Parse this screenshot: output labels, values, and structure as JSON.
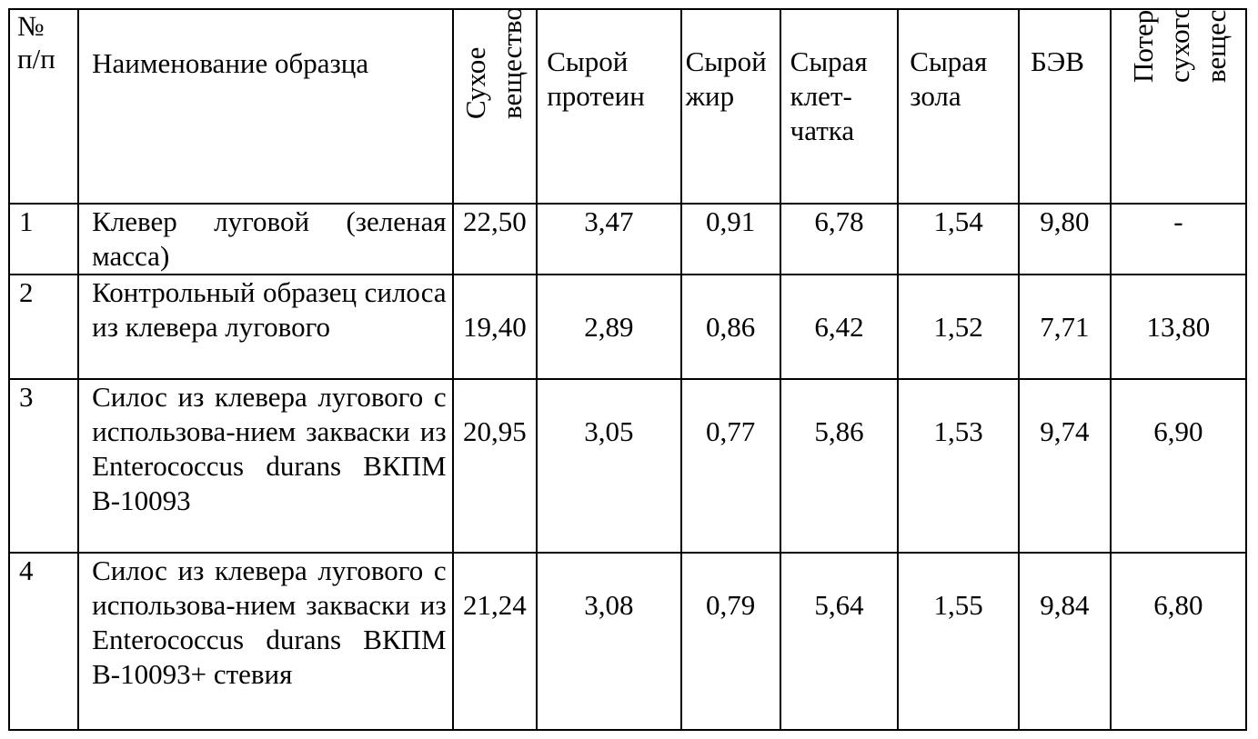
{
  "table": {
    "headers": {
      "num": "№ п/п",
      "num_line1": "№",
      "num_line2": "п/п",
      "name": "Наименование образца",
      "dry_matter_line1": "Сухое",
      "dry_matter_line2": "вещество",
      "crude_protein_line1": "Сырой",
      "crude_protein_line2": "протеин",
      "crude_fat_line1": "Сырой",
      "crude_fat_line2": "жир",
      "crude_fiber_line1": "Сырая",
      "crude_fiber_line2": "клет-",
      "crude_fiber_line3": "чатка",
      "crude_ash_line1": "Сырая",
      "crude_ash_line2": "зола",
      "bev": "БЭВ",
      "loss_line1": "Потери",
      "loss_line2": "сухого",
      "loss_line3": "вещества, %"
    },
    "rows": [
      {
        "num": "1",
        "name": "Клевер луговой (зеленая масса)",
        "dry_matter": "22,50",
        "crude_protein": "3,47",
        "crude_fat": "0,91",
        "crude_fiber": "6,78",
        "crude_ash": "1,54",
        "bev": "9,80",
        "loss": "-"
      },
      {
        "num": "2",
        "name": "Контрольный образец силоса из клевера лугового",
        "dry_matter": "19,40",
        "crude_protein": "2,89",
        "crude_fat": "0,86",
        "crude_fiber": "6,42",
        "crude_ash": "1,52",
        "bev": "7,71",
        "loss": "13,80"
      },
      {
        "num": "3",
        "name": "Силос из клевера лугового с использова-нием закваски из Enterococcus durans ВКПМ В-10093",
        "dry_matter": "20,95",
        "crude_protein": "3,05",
        "crude_fat": "0,77",
        "crude_fiber": "5,86",
        "crude_ash": "1,53",
        "bev": "9,74",
        "loss": "6,90"
      },
      {
        "num": "4",
        "name": "Силос из клевера лугового с использова-нием закваски из Enterococcus durans ВКПМ В-10093+ стевия",
        "dry_matter": "21,24",
        "crude_protein": "3,08",
        "crude_fat": "0,79",
        "crude_fiber": "5,64",
        "crude_ash": "1,55",
        "bev": "9,84",
        "loss": "6,80"
      }
    ]
  }
}
